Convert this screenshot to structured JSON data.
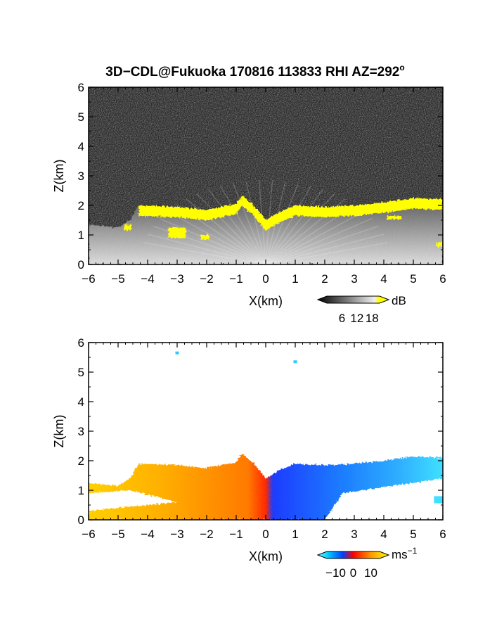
{
  "title": {
    "main": "3D−CDL@Fukuoka 170816 113833 RHI AZ=292",
    "degree_mark": "o"
  },
  "chart_data": [
    {
      "type": "heatmap",
      "panel": "top",
      "quantity": "backscatter",
      "xlabel": "X(km)",
      "ylabel": "Z(km)",
      "xlim": [
        -6,
        6
      ],
      "ylim": [
        0,
        6
      ],
      "x_ticks": [
        "−6",
        "−5",
        "−4",
        "−3",
        "−2",
        "−1",
        "0",
        "1",
        "2",
        "3",
        "4",
        "5",
        "6"
      ],
      "y_ticks": [
        "0",
        "1",
        "2",
        "3",
        "4",
        "5",
        "6"
      ],
      "colorbar": {
        "unit": "dB",
        "ticks": [
          "6",
          "12",
          "18"
        ],
        "range": [
          0,
          21
        ],
        "colors": [
          "#111111",
          "#444444",
          "#777777",
          "#aaaaaa",
          "#dddddd",
          "#ffff00"
        ]
      },
      "background": "#282828",
      "high_echo_color": "#ffff00",
      "echo_top_profile": [
        {
          "x": -6.0,
          "z": 1.35
        },
        {
          "x": -5.0,
          "z": 1.25
        },
        {
          "x": -4.6,
          "z": 1.5
        },
        {
          "x": -4.3,
          "z": 2.0
        },
        {
          "x": -3.0,
          "z": 1.95
        },
        {
          "x": -2.0,
          "z": 1.85
        },
        {
          "x": -1.0,
          "z": 2.05
        },
        {
          "x": -0.8,
          "z": 2.35
        },
        {
          "x": -0.4,
          "z": 2.0
        },
        {
          "x": 0.0,
          "z": 1.5
        },
        {
          "x": 0.5,
          "z": 1.8
        },
        {
          "x": 1.0,
          "z": 2.0
        },
        {
          "x": 2.0,
          "z": 1.95
        },
        {
          "x": 3.0,
          "z": 2.0
        },
        {
          "x": 4.0,
          "z": 2.1
        },
        {
          "x": 5.0,
          "z": 2.25
        },
        {
          "x": 6.0,
          "z": 2.2
        }
      ],
      "grid": false
    },
    {
      "type": "heatmap",
      "panel": "bottom",
      "quantity": "doppler velocity",
      "xlabel": "X(km)",
      "ylabel": "Z(km)",
      "xlim": [
        -6,
        6
      ],
      "ylim": [
        0,
        6
      ],
      "x_ticks": [
        "−6",
        "−5",
        "−4",
        "−3",
        "−2",
        "−1",
        "0",
        "1",
        "2",
        "3",
        "4",
        "5",
        "6"
      ],
      "y_ticks": [
        "0",
        "1",
        "2",
        "3",
        "4",
        "5",
        "6"
      ],
      "colorbar": {
        "unit": "ms",
        "unit_exponent": "−1",
        "ticks": [
          "−10",
          "0",
          "10"
        ],
        "range": [
          -15,
          15
        ],
        "colors": [
          "#00ffff",
          "#0088ff",
          "#0000ff",
          "#ff0000",
          "#ff8800",
          "#ffff00"
        ]
      },
      "velocity_profile": [
        {
          "x": -5.5,
          "v": 7
        },
        {
          "x": -4.0,
          "v": 8
        },
        {
          "x": -3.0,
          "v": 7
        },
        {
          "x": -2.0,
          "v": 5
        },
        {
          "x": -1.0,
          "v": 3
        },
        {
          "x": -0.3,
          "v": 1
        },
        {
          "x": 0.3,
          "v": -2
        },
        {
          "x": 1.0,
          "v": -4
        },
        {
          "x": 2.0,
          "v": -6
        },
        {
          "x": 3.0,
          "v": -8
        },
        {
          "x": 4.0,
          "v": -10
        },
        {
          "x": 5.0,
          "v": -12
        },
        {
          "x": 6.0,
          "v": -13
        }
      ],
      "isolated_points": [
        {
          "x": -3.0,
          "z": 5.65
        },
        {
          "x": 1.0,
          "z": 5.35
        }
      ],
      "grid": false
    }
  ]
}
